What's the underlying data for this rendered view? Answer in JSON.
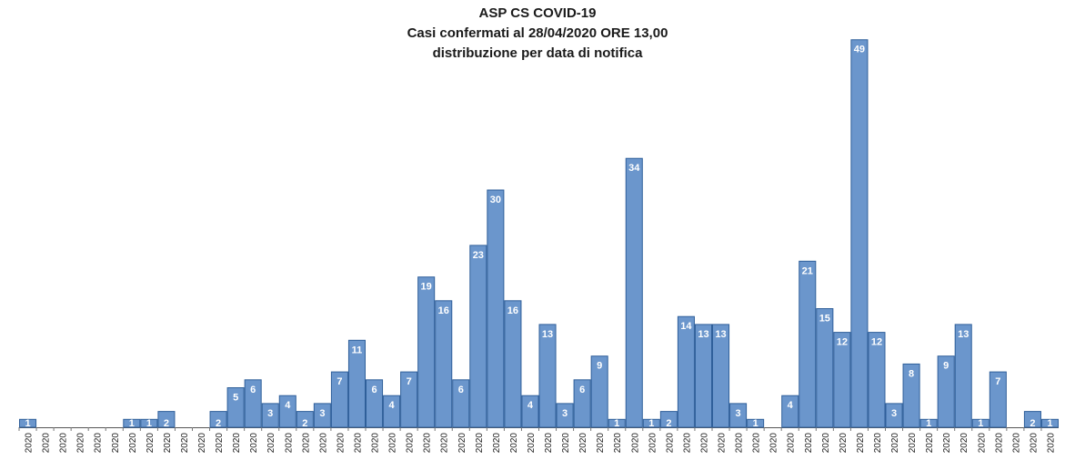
{
  "chart_data": {
    "type": "bar",
    "title_lines": [
      "ASP CS COVID-19",
      "Casi confermati al  28/04/2020 ORE 13,00",
      "distribuzione per data di notifica"
    ],
    "tick_label": "2020",
    "values": [
      1,
      0,
      0,
      0,
      0,
      0,
      1,
      1,
      2,
      0,
      0,
      2,
      5,
      6,
      3,
      4,
      2,
      3,
      7,
      11,
      6,
      4,
      7,
      19,
      16,
      6,
      23,
      30,
      16,
      4,
      13,
      3,
      6,
      9,
      1,
      34,
      1,
      2,
      14,
      13,
      13,
      3,
      1,
      0,
      4,
      21,
      15,
      12,
      49,
      12,
      3,
      8,
      1,
      9,
      13,
      1,
      7,
      0,
      2,
      1
    ],
    "xlabel": "",
    "ylabel": "",
    "ylim": [
      0,
      50
    ],
    "colors": {
      "bar": "#6b96cc",
      "bar_edge": "#2f5f9a",
      "label": "#ffffff"
    }
  }
}
